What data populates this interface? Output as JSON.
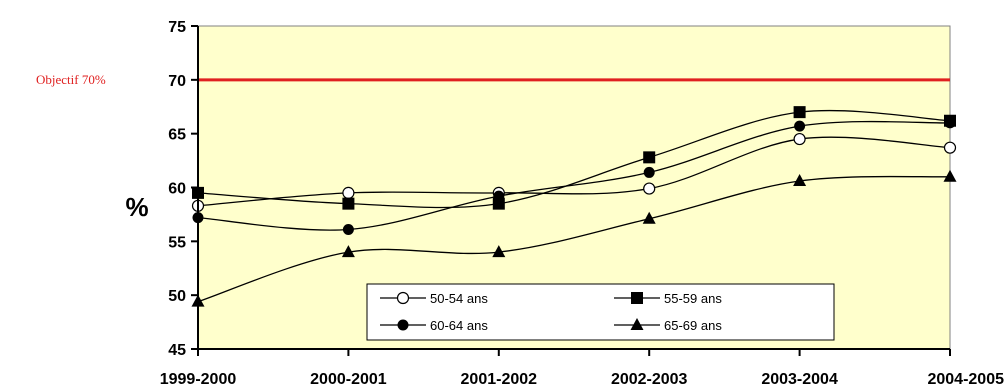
{
  "chart_data": {
    "type": "line",
    "title": "",
    "xlabel": "",
    "ylabel": "%",
    "ylim": [
      45,
      75
    ],
    "yticks": [
      45,
      50,
      55,
      60,
      65,
      70,
      75
    ],
    "categories": [
      "1999-2000",
      "2000-2001",
      "2001-2002",
      "2002-2003",
      "2003-2004",
      "2004-2005"
    ],
    "plot_background": "#ffffcc",
    "grid": false,
    "legend_position": "bottom-center",
    "target_line": {
      "label": "Objectif 70%",
      "value": 70,
      "color": "#e02020"
    },
    "series": [
      {
        "name": "50-54 ans",
        "marker": "circle-open",
        "values": [
          58.3,
          59.5,
          59.5,
          59.9,
          64.5,
          63.7
        ]
      },
      {
        "name": "55-59 ans",
        "marker": "square",
        "values": [
          59.5,
          58.5,
          58.5,
          62.8,
          67.0,
          66.2
        ]
      },
      {
        "name": "60-64 ans",
        "marker": "circle",
        "values": [
          57.2,
          56.1,
          59.2,
          61.4,
          65.7,
          66.0
        ]
      },
      {
        "name": "65-69 ans",
        "marker": "triangle",
        "values": [
          49.4,
          54.0,
          54.0,
          57.1,
          60.6,
          61.0
        ]
      }
    ]
  }
}
